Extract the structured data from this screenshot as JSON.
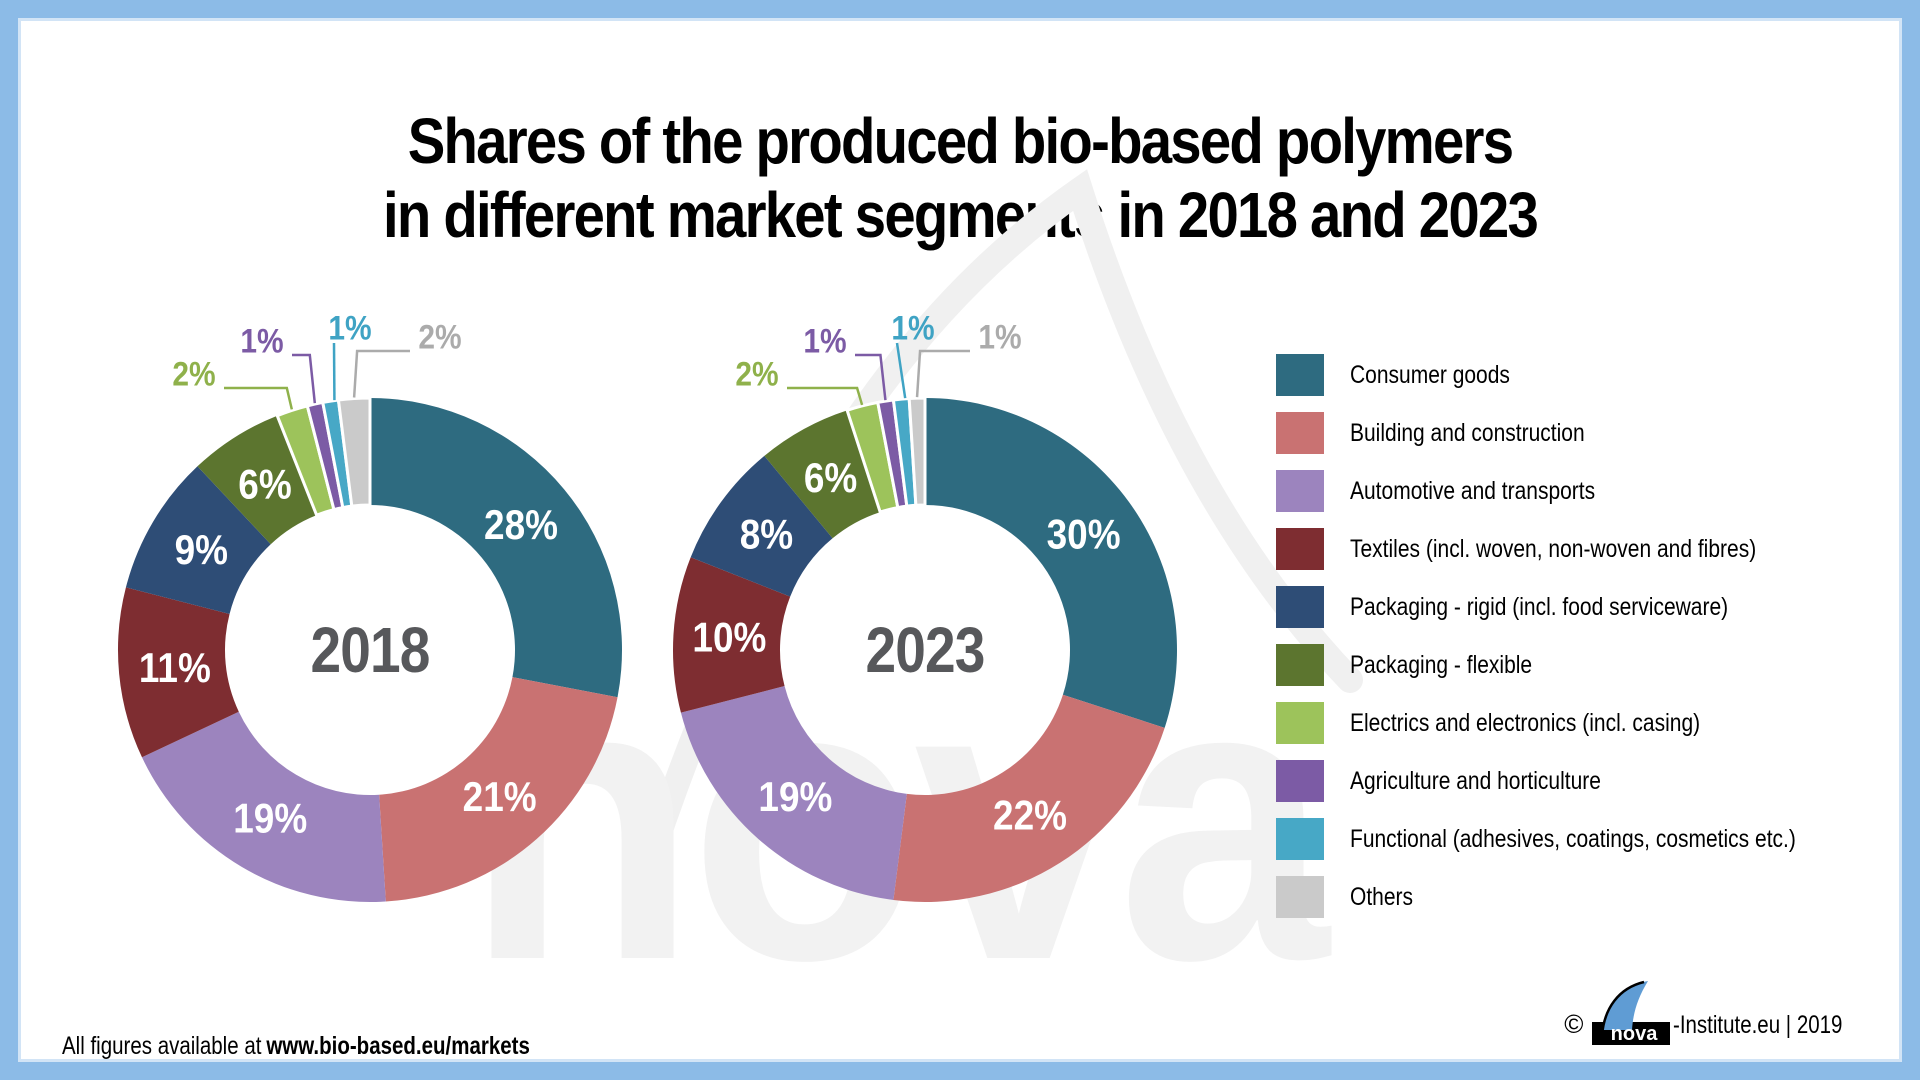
{
  "page": {
    "title_line1": "Shares of the produced bio-based polymers",
    "title_line2": "in different market segments in 2018 and 2023",
    "footer_prefix": "All figures available at",
    "footer_link": "www.bio-based.eu/markets",
    "credit_copyright": "©",
    "credit_logo_text": "nova",
    "credit_suffix": "-Institute.eu | 2019",
    "border_color": "#8CBBE7"
  },
  "watermark": {
    "text": "nova"
  },
  "colors": {
    "palette": [
      "#2E6B80",
      "#C97272",
      "#9C84BE",
      "#7E2D31",
      "#2E4D76",
      "#5C752F",
      "#9DC35B",
      "#7C5BA5",
      "#47A8C6",
      "#CACACA"
    ],
    "callout_text": [
      "#8FB14B",
      "#7C5BA5",
      "#3FA3C4",
      "#ABABAB"
    ],
    "inside_label": "#FFFFFF",
    "year_label": "#57585B",
    "logo_flame_blue": "#5F9CD4"
  },
  "legend": {
    "items": [
      {
        "label": "Consumer goods",
        "color": "#2E6B80"
      },
      {
        "label": "Building and construction",
        "color": "#C97272"
      },
      {
        "label": "Automotive and transports",
        "color": "#9C84BE"
      },
      {
        "label": "Textiles (incl. woven, non-woven and fibres)",
        "color": "#7E2D31"
      },
      {
        "label": "Packaging - rigid (incl. food serviceware)",
        "color": "#2E4D76"
      },
      {
        "label": "Packaging - flexible",
        "color": "#5C752F"
      },
      {
        "label": "Electrics and electronics (incl. casing)",
        "color": "#9DC35B"
      },
      {
        "label": "Agriculture and horticulture",
        "color": "#7C5BA5"
      },
      {
        "label": "Functional (adhesives, coatings, cosmetics etc.)",
        "color": "#47A8C6"
      },
      {
        "label": "Others",
        "color": "#CACACA"
      }
    ]
  },
  "chart_data": [
    {
      "type": "pie",
      "subtype": "donut",
      "title": "2018",
      "unit": "%",
      "categories": [
        "Consumer goods",
        "Building and construction",
        "Automotive and transports",
        "Textiles (incl. woven, non-woven and fibres)",
        "Packaging - rigid (incl. food serviceware)",
        "Packaging - flexible",
        "Electrics and electronics (incl. casing)",
        "Agriculture and horticulture",
        "Functional (adhesives, coatings, cosmetics etc.)",
        "Others"
      ],
      "values": [
        28,
        21,
        19,
        11,
        9,
        6,
        2,
        1,
        1,
        2
      ],
      "colors": [
        "#2E6B80",
        "#C97272",
        "#9C84BE",
        "#7E2D31",
        "#2E4D76",
        "#5C752F",
        "#9DC35B",
        "#7C5BA5",
        "#47A8C6",
        "#CACACA"
      ],
      "legend_position": "right",
      "start_angle_deg": 0,
      "direction": "clockwise"
    },
    {
      "type": "pie",
      "subtype": "donut",
      "title": "2023",
      "unit": "%",
      "categories": [
        "Consumer goods",
        "Building and construction",
        "Automotive and transports",
        "Textiles (incl. woven, non-woven and fibres)",
        "Packaging - rigid (incl. food serviceware)",
        "Packaging - flexible",
        "Electrics and electronics (incl. casing)",
        "Agriculture and horticulture",
        "Functional (adhesives, coatings, cosmetics etc.)",
        "Others"
      ],
      "values": [
        30,
        22,
        19,
        10,
        8,
        6,
        2,
        1,
        1,
        1
      ],
      "colors": [
        "#2E6B80",
        "#C97272",
        "#9C84BE",
        "#7E2D31",
        "#2E4D76",
        "#5C752F",
        "#9DC35B",
        "#7C5BA5",
        "#47A8C6",
        "#CACACA"
      ],
      "legend_position": "right",
      "start_angle_deg": 0,
      "direction": "clockwise"
    }
  ]
}
